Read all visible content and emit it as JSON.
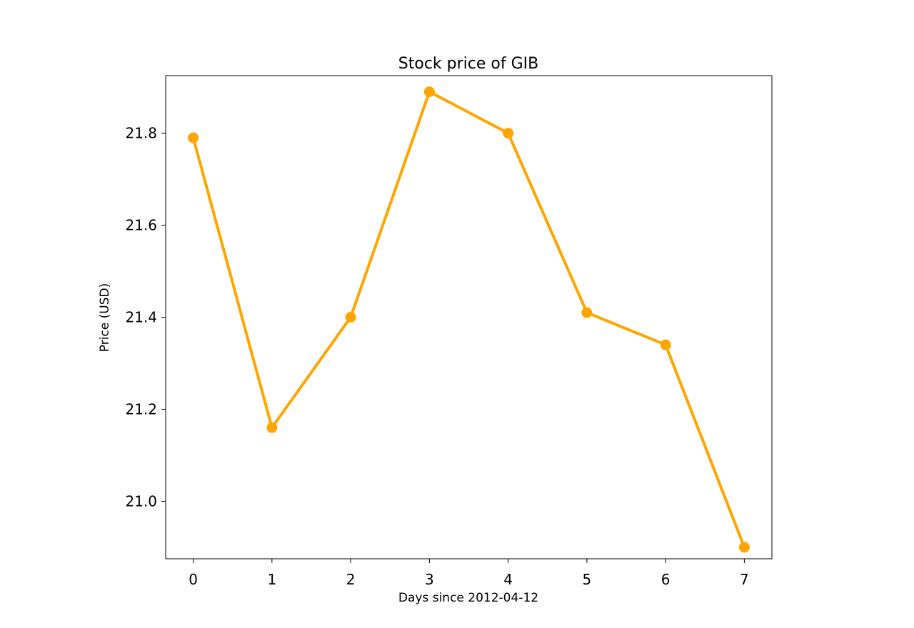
{
  "chart_data": {
    "type": "line",
    "title": "Stock price of GIB",
    "xlabel": "Days since 2012-04-12",
    "ylabel": "Price (USD)",
    "x": [
      0,
      1,
      2,
      3,
      4,
      5,
      6,
      7
    ],
    "x_ticks": [
      "0",
      "1",
      "2",
      "3",
      "4",
      "5",
      "6",
      "7"
    ],
    "xlim": [
      -0.35,
      7.35
    ],
    "y_ticks": [
      "21.0",
      "21.2",
      "21.4",
      "21.6",
      "21.8"
    ],
    "ylim": [
      20.875,
      21.925
    ],
    "grid": false,
    "series": [
      {
        "values": [
          21.79,
          21.16,
          21.4,
          21.89,
          21.8,
          21.41,
          21.34,
          20.9
        ],
        "color": "#FFA500",
        "marker": "circle"
      }
    ]
  }
}
